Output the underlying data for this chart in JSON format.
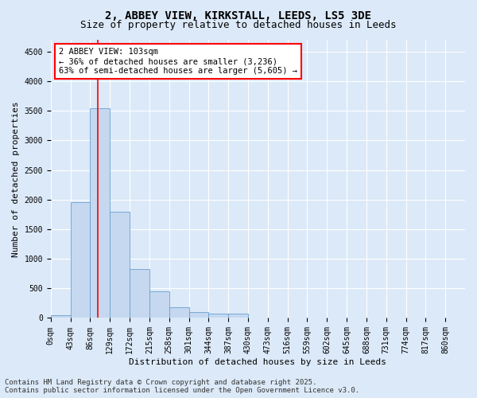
{
  "title_line1": "2, ABBEY VIEW, KIRKSTALL, LEEDS, LS5 3DE",
  "title_line2": "Size of property relative to detached houses in Leeds",
  "xlabel": "Distribution of detached houses by size in Leeds",
  "ylabel": "Number of detached properties",
  "bar_labels": [
    "0sqm",
    "43sqm",
    "86sqm",
    "129sqm",
    "172sqm",
    "215sqm",
    "258sqm",
    "301sqm",
    "344sqm",
    "387sqm",
    "430sqm",
    "473sqm",
    "516sqm",
    "559sqm",
    "602sqm",
    "645sqm",
    "688sqm",
    "731sqm",
    "774sqm",
    "817sqm",
    "860sqm"
  ],
  "bar_values": [
    40,
    1950,
    3550,
    1800,
    830,
    450,
    175,
    100,
    75,
    70,
    0,
    0,
    0,
    0,
    0,
    0,
    0,
    0,
    0,
    0,
    0
  ],
  "bar_color": "#c5d8f0",
  "bar_edge_color": "#6aa0cc",
  "vline_x": 2.4,
  "vline_color": "red",
  "ylim": [
    0,
    4700
  ],
  "yticks": [
    0,
    500,
    1000,
    1500,
    2000,
    2500,
    3000,
    3500,
    4000,
    4500
  ],
  "annotation_title": "2 ABBEY VIEW: 103sqm",
  "annotation_line1": "← 36% of detached houses are smaller (3,236)",
  "annotation_line2": "63% of semi-detached houses are larger (5,605) →",
  "footer_line1": "Contains HM Land Registry data © Crown copyright and database right 2025.",
  "footer_line2": "Contains public sector information licensed under the Open Government Licence v3.0.",
  "bg_color": "#dce9f8",
  "plot_bg_color": "#dce9f8",
  "grid_color": "white",
  "title_fontsize": 10,
  "subtitle_fontsize": 9,
  "axis_label_fontsize": 8,
  "tick_fontsize": 7,
  "annotation_fontsize": 7.5,
  "footer_fontsize": 6.5
}
